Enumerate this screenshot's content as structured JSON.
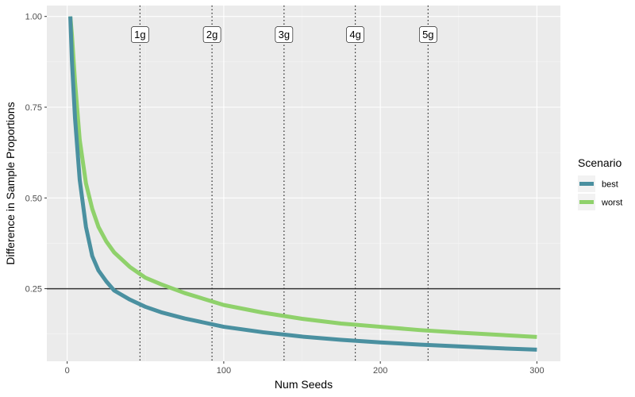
{
  "chart_data": {
    "type": "line",
    "xlabel": "Num Seeds",
    "ylabel": "Difference in Sample Proportions",
    "xlim": [
      -13,
      315
    ],
    "ylim": [
      0.05,
      1.03
    ],
    "x_ticks": [
      0,
      100,
      200,
      300
    ],
    "x_tick_labels": [
      "0",
      "100",
      "200",
      "300"
    ],
    "y_ticks": [
      0.25,
      0.5,
      0.75,
      1.0
    ],
    "y_tick_labels": [
      "0.25",
      "0.50",
      "0.75",
      "1.00"
    ],
    "grid": true,
    "background": "#ebebeb",
    "legend": {
      "title": "Scenario",
      "position": "right",
      "entries": [
        "best",
        "worst"
      ]
    },
    "series": [
      {
        "name": "best",
        "color": "#4a90a0",
        "x": [
          2,
          3,
          5,
          8,
          12,
          16,
          20,
          25,
          30,
          40,
          50,
          60,
          75,
          100,
          125,
          150,
          175,
          200,
          225,
          250,
          275,
          300
        ],
        "y": [
          1.0,
          0.88,
          0.72,
          0.55,
          0.42,
          0.34,
          0.3,
          0.27,
          0.245,
          0.22,
          0.2,
          0.185,
          0.168,
          0.145,
          0.13,
          0.118,
          0.109,
          0.102,
          0.096,
          0.091,
          0.086,
          0.082
        ]
      },
      {
        "name": "worst",
        "color": "#8fd16b",
        "x": [
          2,
          3,
          5,
          8,
          12,
          16,
          20,
          25,
          30,
          40,
          50,
          60,
          75,
          100,
          125,
          150,
          175,
          200,
          225,
          250,
          275,
          300
        ],
        "y": [
          1.0,
          0.95,
          0.82,
          0.66,
          0.54,
          0.47,
          0.42,
          0.38,
          0.35,
          0.31,
          0.28,
          0.262,
          0.238,
          0.205,
          0.184,
          0.167,
          0.154,
          0.145,
          0.136,
          0.129,
          0.123,
          0.117
        ]
      }
    ],
    "hlines": [
      {
        "y": 0.25,
        "color": "#333333"
      }
    ],
    "vlines": [
      {
        "x": 46.5,
        "label": "1g"
      },
      {
        "x": 92.5,
        "label": "2g"
      },
      {
        "x": 138.5,
        "label": "3g"
      },
      {
        "x": 184,
        "label": "4g"
      },
      {
        "x": 230.5,
        "label": "5g"
      }
    ],
    "vline_label_y": 0.95
  }
}
